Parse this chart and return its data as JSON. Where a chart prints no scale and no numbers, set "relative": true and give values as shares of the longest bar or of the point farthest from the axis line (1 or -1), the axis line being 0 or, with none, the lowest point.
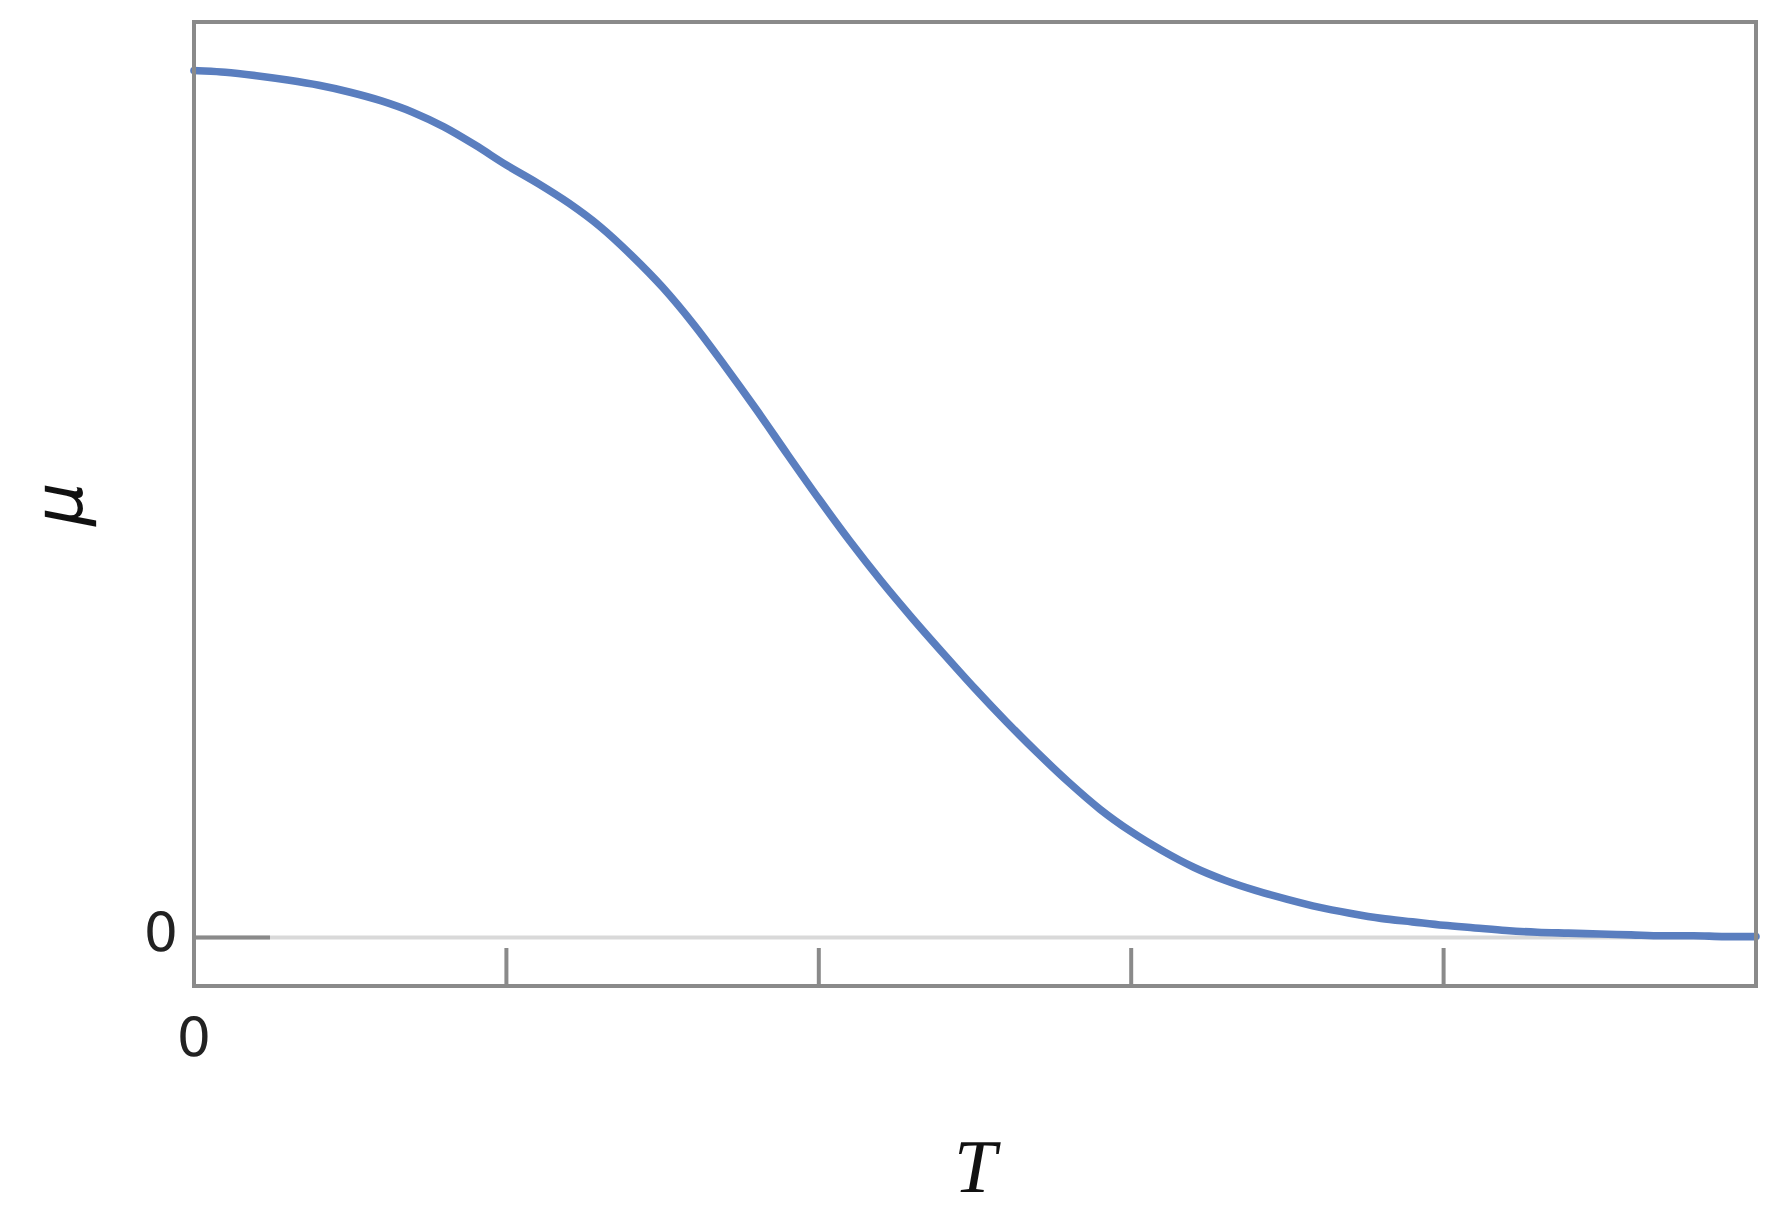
{
  "chart_data": {
    "type": "line",
    "xlabel": "T",
    "ylabel": "μ",
    "relative": true,
    "categories": [
      null,
      null,
      null,
      null,
      null,
      null,
      null,
      null,
      null,
      null,
      null,
      null,
      null,
      null,
      null,
      null,
      null,
      null,
      null,
      null,
      null,
      null,
      null,
      null,
      null,
      null,
      null,
      null,
      null,
      null,
      null,
      null,
      null,
      null,
      null,
      null,
      null,
      null,
      null,
      null,
      null,
      null,
      null,
      null,
      null,
      null,
      null,
      null,
      null,
      null,
      null
    ],
    "values": [
      1.0,
      0.998,
      0.994,
      0.989,
      0.983,
      0.975,
      0.965,
      0.952,
      0.935,
      0.914,
      0.891,
      0.87,
      0.847,
      0.82,
      0.787,
      0.75,
      0.707,
      0.659,
      0.609,
      0.557,
      0.506,
      0.457,
      0.411,
      0.368,
      0.327,
      0.287,
      0.249,
      0.213,
      0.179,
      0.148,
      0.122,
      0.1,
      0.081,
      0.066,
      0.054,
      0.044,
      0.035,
      0.028,
      0.022,
      0.018,
      0.014,
      0.011,
      0.008,
      0.006,
      0.005,
      0.004,
      0.003,
      0.002,
      0.002,
      0.001,
      0.001
    ],
    "color": "#5a7ebf",
    "marker": "none",
    "line_style": "solid",
    "annotations": [
      "0"
    ],
    "ref_lines": [
      {
        "axis": "y",
        "value": 0,
        "label": "0",
        "color": "#d9d9d9"
      }
    ]
  }
}
